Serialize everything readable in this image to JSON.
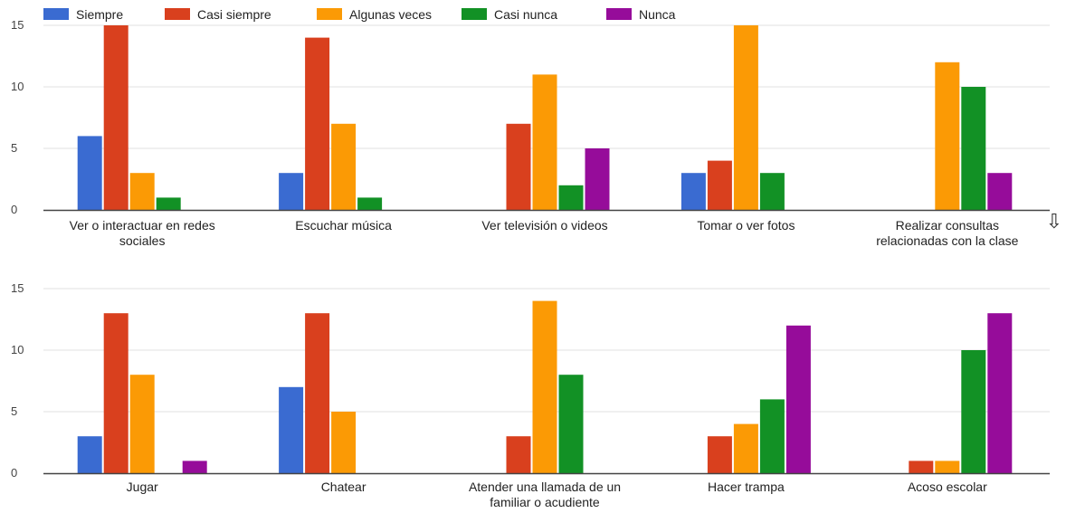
{
  "colors": {
    "Siempre": "#3a6bd1",
    "Casi siempre": "#d9401e",
    "Algunas veces": "#fb9a05",
    "Casi nunca": "#129125",
    "Nunca": "#960c9a",
    "grid": "#e2e2e2",
    "baseline": "#444444"
  },
  "legend": {
    "items": [
      {
        "label": "Siempre",
        "color": "#3a6bd1"
      },
      {
        "label": "Casi siempre",
        "color": "#d9401e"
      },
      {
        "label": "Algunas veces",
        "color": "#fb9a05"
      },
      {
        "label": "Casi nunca",
        "color": "#129125"
      },
      {
        "label": "Nunca",
        "color": "#960c9a"
      }
    ]
  },
  "scroll_indicator": {
    "icon": "arrow-down-icon",
    "glyph": "⇩"
  },
  "chart_data": [
    {
      "type": "bar",
      "categories": [
        [
          "Ver o interactuar en redes",
          "sociales"
        ],
        [
          "Escuchar música"
        ],
        [
          "Ver televisión o videos"
        ],
        [
          "Tomar o ver fotos"
        ],
        [
          "Realizar consultas",
          "relacionadas con la clase"
        ]
      ],
      "series": [
        {
          "name": "Siempre",
          "values": [
            6,
            3,
            0,
            3,
            0
          ]
        },
        {
          "name": "Casi siempre",
          "values": [
            15,
            14,
            7,
            4,
            0
          ]
        },
        {
          "name": "Algunas veces",
          "values": [
            3,
            7,
            11,
            15,
            12
          ]
        },
        {
          "name": "Casi nunca",
          "values": [
            1,
            1,
            2,
            3,
            10
          ]
        },
        {
          "name": "Nunca",
          "values": [
            0,
            0,
            5,
            0,
            3
          ]
        }
      ],
      "ylim": [
        0,
        15
      ],
      "yticks": [
        0,
        5,
        10,
        15
      ],
      "grid": true,
      "legend": "top-left"
    },
    {
      "type": "bar",
      "categories": [
        [
          "Jugar"
        ],
        [
          "Chatear"
        ],
        [
          "Atender una llamada de un",
          "familiar o acudiente"
        ],
        [
          "Hacer trampa"
        ],
        [
          "Acoso escolar"
        ]
      ],
      "series": [
        {
          "name": "Siempre",
          "values": [
            3,
            7,
            0,
            0,
            0
          ]
        },
        {
          "name": "Casi siempre",
          "values": [
            13,
            13,
            3,
            3,
            1
          ]
        },
        {
          "name": "Algunas veces",
          "values": [
            8,
            5,
            14,
            4,
            1
          ]
        },
        {
          "name": "Casi nunca",
          "values": [
            0,
            0,
            8,
            6,
            10
          ]
        },
        {
          "name": "Nunca",
          "values": [
            1,
            0,
            0,
            12,
            13
          ]
        }
      ],
      "ylim": [
        0,
        15
      ],
      "yticks": [
        0,
        5,
        10,
        15
      ],
      "grid": true
    }
  ]
}
